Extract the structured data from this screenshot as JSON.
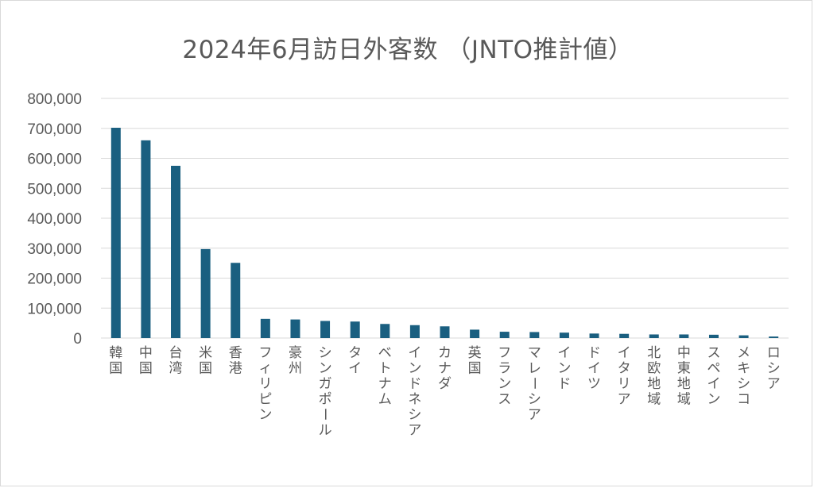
{
  "chart_data": {
    "type": "bar",
    "title": "2024年6月訪日外客数 （JNTO推計値）",
    "xlabel": "",
    "ylabel": "",
    "ylim": [
      0,
      800000
    ],
    "yticks": [
      0,
      100000,
      200000,
      300000,
      400000,
      500000,
      600000,
      700000,
      800000
    ],
    "ytick_labels": [
      "0",
      "100,000",
      "200,000",
      "300,000",
      "400,000",
      "500,000",
      "600,000",
      "700,000",
      "800,000"
    ],
    "grid": true,
    "legend": "none",
    "bar_color": "#1a5f80",
    "grid_color": "#d9d9d9",
    "categories": [
      "韓国",
      "中国",
      "台湾",
      "米国",
      "香港",
      "フィリピン",
      "豪州",
      "シンガポール",
      "タイ",
      "ベトナム",
      "インドネシア",
      "カナダ",
      "英国",
      "フランス",
      "マレーシア",
      "インド",
      "ドイツ",
      "イタリア",
      "北欧地域",
      "中東地域",
      "スペイン",
      "メキシコ",
      "ロシア"
    ],
    "values": [
      702000,
      660000,
      575000,
      297000,
      251000,
      64000,
      62000,
      57000,
      55000,
      47000,
      43000,
      39000,
      28000,
      21000,
      20000,
      18000,
      15000,
      14000,
      12000,
      12000,
      11000,
      9000,
      5000
    ]
  }
}
